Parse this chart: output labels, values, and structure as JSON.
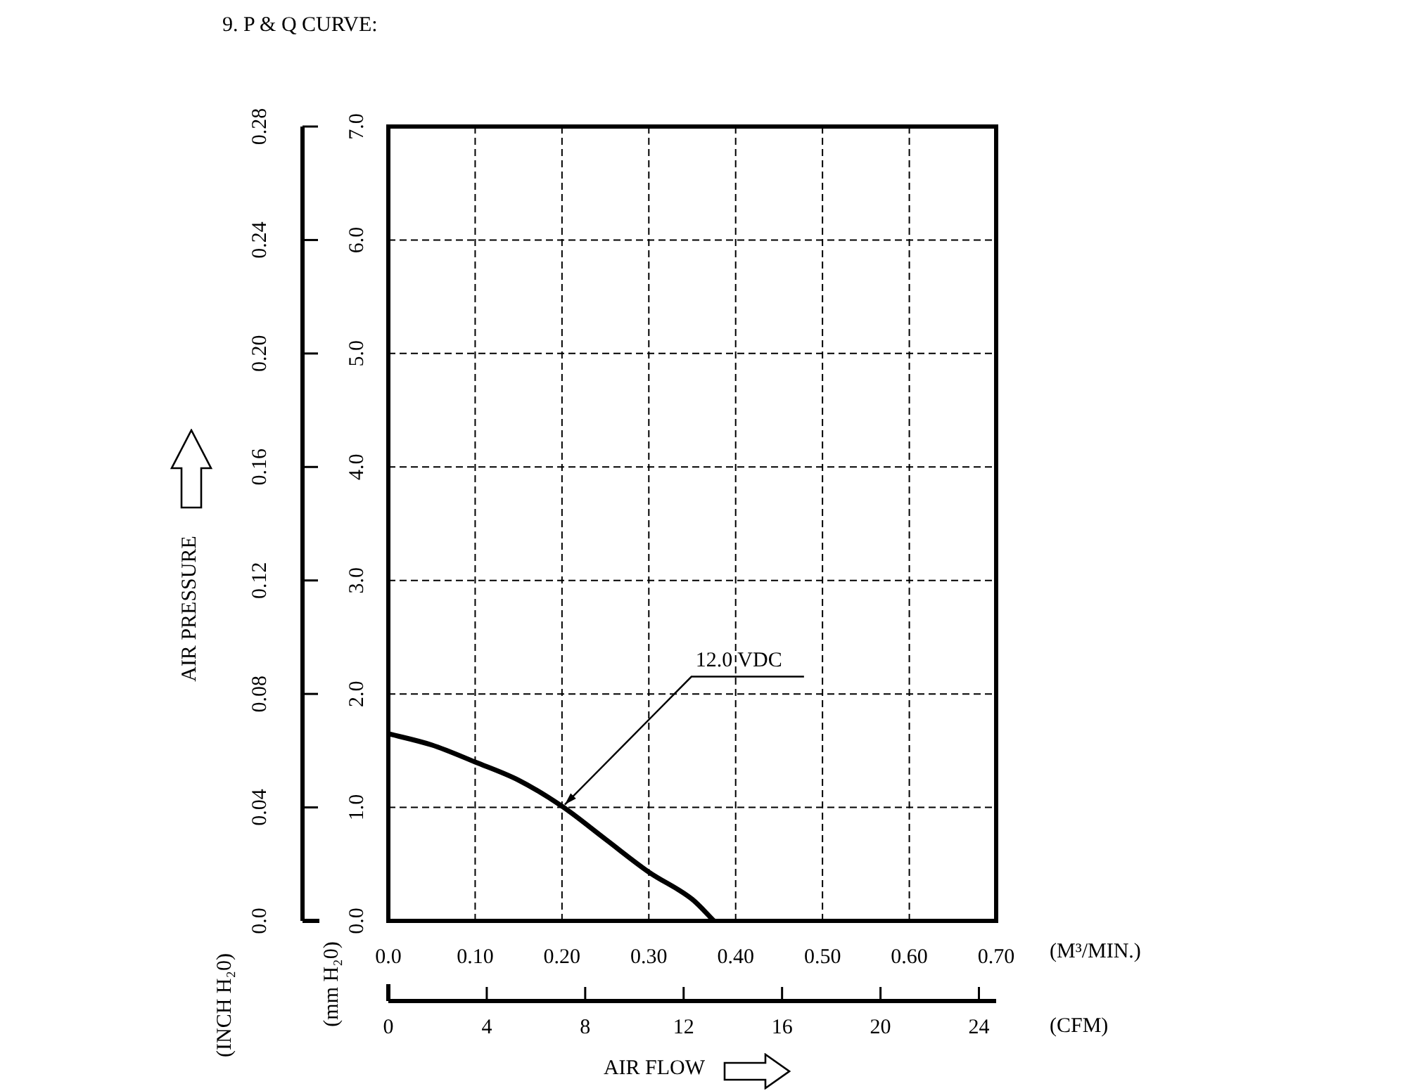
{
  "chart_data": {
    "type": "line",
    "title": "9. P & Q CURVE:",
    "xlabel": "(M³/MIN.)",
    "x2label": "(CFM)",
    "ylabel": "(mm H₂0)",
    "y2label": "(INCH H₂0)",
    "annotations": [
      "AIR FLOW",
      "AIR PRESSURE",
      {
        "text": "12.0 VDC",
        "x": 0.2,
        "y": 1.0
      }
    ],
    "x": [
      0,
      0.05,
      0.1,
      0.15,
      0.2,
      0.25,
      0.3,
      0.35,
      0.375
    ],
    "series": [
      {
        "color": "#000000",
        "values": [
          1.65,
          1.55,
          1.4,
          1.24,
          1.01,
          0.72,
          0.43,
          0.19,
          0
        ]
      }
    ],
    "xlim": [
      0,
      0.7
    ],
    "xticks": [
      {
        "value": 0,
        "label": "0.0"
      },
      {
        "value": 0.1,
        "label": "0.10"
      },
      {
        "value": 0.2,
        "label": "0.20"
      },
      {
        "value": 0.3,
        "label": "0.30"
      },
      {
        "value": 0.4,
        "label": "0.40"
      },
      {
        "value": 0.5,
        "label": "0.50"
      },
      {
        "value": 0.6,
        "label": "0.60"
      },
      {
        "value": 0.7,
        "label": "0.70"
      }
    ],
    "x2lim": [
      0,
      24.7
    ],
    "x2ticks": [
      0,
      4,
      8,
      12,
      16,
      20,
      24
    ],
    "ylim": [
      0,
      7
    ],
    "yticks": [
      {
        "value": 0,
        "label": "0.0"
      },
      {
        "value": 1,
        "label": "1.0"
      },
      {
        "value": 2,
        "label": "2.0"
      },
      {
        "value": 3,
        "label": "3.0"
      },
      {
        "value": 4,
        "label": "4.0"
      },
      {
        "value": 5,
        "label": "5.0"
      },
      {
        "value": 6,
        "label": "6.0"
      },
      {
        "value": 7,
        "label": "7.0"
      }
    ],
    "y2lim": [
      0,
      0.28
    ],
    "y2ticks": [
      {
        "value": 0,
        "label": "0.0"
      },
      0.04,
      0.08,
      0.12,
      0.16,
      {
        "value": 0.2,
        "label": "0.20"
      },
      0.24,
      0.28
    ],
    "grid": true,
    "marker": "none",
    "line_style": "solid"
  }
}
